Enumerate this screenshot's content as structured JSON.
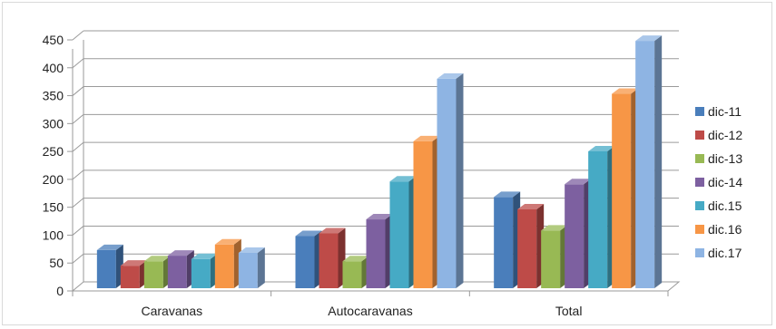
{
  "chart_data": {
    "type": "bar",
    "title": "",
    "xlabel": "",
    "ylabel": "",
    "ylim": [
      0,
      450
    ],
    "yticks": [
      0,
      50,
      100,
      150,
      200,
      250,
      300,
      350,
      400,
      450
    ],
    "grid": true,
    "legend_position": "right",
    "categories": [
      "Caravanas",
      "Autocaravanas",
      "Total"
    ],
    "series": [
      {
        "name": "dic-11",
        "color": "#4a7ebb",
        "values": [
          70,
          95,
          165
        ]
      },
      {
        "name": "dic-12",
        "color": "#be4b48",
        "values": [
          42,
          100,
          143
        ]
      },
      {
        "name": "dic-13",
        "color": "#98b954",
        "values": [
          50,
          50,
          105
        ]
      },
      {
        "name": "dic-14",
        "color": "#7d60a0",
        "values": [
          60,
          125,
          188
        ]
      },
      {
        "name": "dic.15",
        "color": "#46aac5",
        "values": [
          54,
          193,
          247
        ]
      },
      {
        "name": "dic.16",
        "color": "#f79646",
        "values": [
          80,
          265,
          350
        ]
      },
      {
        "name": "dic.17",
        "color": "#8eb4e3",
        "values": [
          65,
          377,
          445
        ]
      }
    ]
  }
}
